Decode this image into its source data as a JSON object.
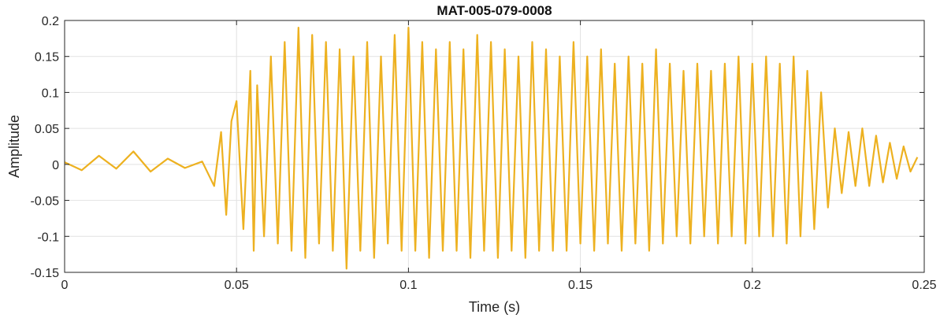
{
  "chart_data": {
    "type": "line",
    "title": "MAT-005-079-0008",
    "xlabel": "Time (s)",
    "ylabel": "Amplitude",
    "xlim": [
      0,
      0.25
    ],
    "ylim": [
      -0.15,
      0.2
    ],
    "xticks": [
      0,
      0.05,
      0.1,
      0.15,
      0.2,
      0.25
    ],
    "xtick_labels": [
      "0",
      "0.05",
      "0.1",
      "0.15",
      "0.2",
      "0.25"
    ],
    "yticks": [
      -0.15,
      -0.1,
      -0.05,
      0,
      0.05,
      0.1,
      0.15,
      0.2
    ],
    "ytick_labels": [
      "-0.15",
      "-0.1",
      "-0.05",
      "0",
      "0.05",
      "0.1",
      "0.15",
      "0.2"
    ],
    "grid": true,
    "line_color": "#EDB120",
    "series": [
      {
        "x": [
          0,
          0.005,
          0.01,
          0.015,
          0.02,
          0.025,
          0.03,
          0.035,
          0.04,
          0.0435,
          0.0455,
          0.047,
          0.0485,
          0.05,
          0.052,
          0.054,
          0.055,
          0.056,
          0.058,
          0.06,
          0.062,
          0.064,
          0.066,
          0.068,
          0.07,
          0.072,
          0.074,
          0.076,
          0.078,
          0.08,
          0.082,
          0.084,
          0.086,
          0.088,
          0.09,
          0.092,
          0.094,
          0.096,
          0.098,
          0.1,
          0.102,
          0.104,
          0.106,
          0.108,
          0.11,
          0.112,
          0.114,
          0.116,
          0.118,
          0.12,
          0.122,
          0.124,
          0.126,
          0.128,
          0.13,
          0.132,
          0.134,
          0.136,
          0.138,
          0.14,
          0.142,
          0.144,
          0.146,
          0.148,
          0.15,
          0.152,
          0.154,
          0.156,
          0.158,
          0.16,
          0.162,
          0.164,
          0.166,
          0.168,
          0.17,
          0.172,
          0.174,
          0.176,
          0.178,
          0.18,
          0.182,
          0.184,
          0.186,
          0.188,
          0.19,
          0.192,
          0.194,
          0.196,
          0.198,
          0.2,
          0.202,
          0.204,
          0.206,
          0.208,
          0.21,
          0.212,
          0.214,
          0.216,
          0.218,
          0.22,
          0.222,
          0.224,
          0.226,
          0.228,
          0.23,
          0.232,
          0.234,
          0.236,
          0.238,
          0.24,
          0.242,
          0.244,
          0.246,
          0.248
        ],
        "y": [
          0.003,
          -0.008,
          0.012,
          -0.006,
          0.018,
          -0.01,
          0.008,
          -0.005,
          0.004,
          -0.03,
          0.045,
          -0.07,
          0.06,
          0.088,
          -0.09,
          0.13,
          -0.12,
          0.11,
          -0.1,
          0.15,
          -0.11,
          0.17,
          -0.12,
          0.19,
          -0.13,
          0.18,
          -0.11,
          0.17,
          -0.12,
          0.16,
          -0.145,
          0.15,
          -0.12,
          0.17,
          -0.13,
          0.15,
          -0.11,
          0.18,
          -0.12,
          0.19,
          -0.12,
          0.17,
          -0.13,
          0.16,
          -0.12,
          0.17,
          -0.12,
          0.16,
          -0.13,
          0.18,
          -0.12,
          0.17,
          -0.13,
          0.16,
          -0.12,
          0.15,
          -0.13,
          0.17,
          -0.12,
          0.16,
          -0.12,
          0.15,
          -0.12,
          0.17,
          -0.11,
          0.15,
          -0.12,
          0.16,
          -0.11,
          0.14,
          -0.12,
          0.15,
          -0.11,
          0.14,
          -0.12,
          0.16,
          -0.11,
          0.14,
          -0.1,
          0.13,
          -0.11,
          0.14,
          -0.1,
          0.13,
          -0.11,
          0.14,
          -0.1,
          0.15,
          -0.11,
          0.14,
          -0.1,
          0.15,
          -0.1,
          0.14,
          -0.11,
          0.15,
          -0.1,
          0.13,
          -0.09,
          0.1,
          -0.06,
          0.05,
          -0.04,
          0.045,
          -0.03,
          0.05,
          -0.03,
          0.04,
          -0.025,
          0.03,
          -0.02,
          0.025,
          -0.01,
          0.01
        ]
      }
    ]
  }
}
